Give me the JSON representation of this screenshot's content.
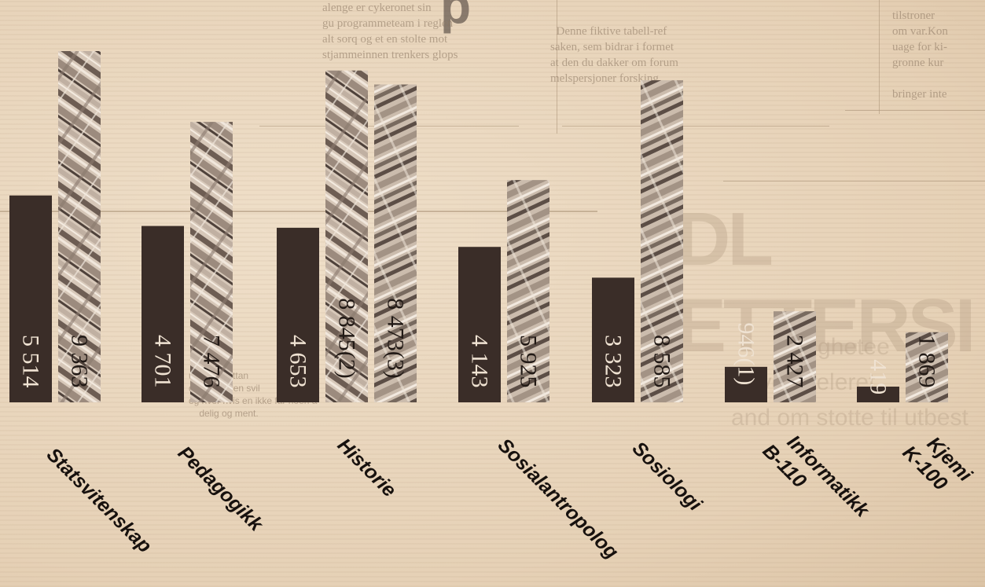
{
  "chart_data": {
    "type": "bar",
    "title": "",
    "xlabel": "",
    "ylabel": "",
    "ylim": [
      0,
      9500
    ],
    "grid": false,
    "legend": "none",
    "categories": [
      {
        "id": "statsvitenskap",
        "lines": [
          "Statsvitenskap"
        ]
      },
      {
        "id": "pedagogikk",
        "lines": [
          "Pedagogikk"
        ]
      },
      {
        "id": "historie",
        "lines": [
          "Historie"
        ]
      },
      {
        "id": "sosialantropologi",
        "lines": [
          "Sosialantropolog"
        ]
      },
      {
        "id": "sosiologi",
        "lines": [
          "Sosiologi"
        ]
      },
      {
        "id": "informatikk",
        "lines": [
          "Informatikk",
          "B-110"
        ]
      },
      {
        "id": "kjemi",
        "lines": [
          "Kjemi",
          "K-100"
        ]
      }
    ],
    "bars": [
      {
        "cat": 0,
        "kind": "dark",
        "value": 5514,
        "label": "5 514"
      },
      {
        "cat": 0,
        "kind": "photo",
        "value": 9363,
        "label": "9 363"
      },
      {
        "cat": 1,
        "kind": "dark",
        "value": 4701,
        "label": "4 701"
      },
      {
        "cat": 1,
        "kind": "photo",
        "value": 7476,
        "label": "7 476"
      },
      {
        "cat": 2,
        "kind": "dark",
        "value": 4653,
        "label": "4 653"
      },
      {
        "cat": 2,
        "kind": "photo",
        "value": 8845,
        "label": "8 845(2)"
      },
      {
        "cat": 2,
        "kind": "photo",
        "value": 8473,
        "label": "8 473(3)"
      },
      {
        "cat": 3,
        "kind": "dark",
        "value": 4143,
        "label": "4 143"
      },
      {
        "cat": 3,
        "kind": "photo",
        "value": 5925,
        "label": "5 925"
      },
      {
        "cat": 4,
        "kind": "dark",
        "value": 3323,
        "label": "3 323"
      },
      {
        "cat": 4,
        "kind": "photo",
        "value": 8585,
        "label": "8 585"
      },
      {
        "cat": 5,
        "kind": "dark",
        "value": 946,
        "label": "946(1)"
      },
      {
        "cat": 5,
        "kind": "photo",
        "value": 2427,
        "label": "2 427"
      },
      {
        "cat": 6,
        "kind": "dark",
        "value": 419,
        "label": "419"
      },
      {
        "cat": 6,
        "kind": "photo",
        "value": 1869,
        "label": "1 869"
      }
    ],
    "colors": {
      "dark": "#3a2d28",
      "photo_light": "#d9cbbd",
      "photo_dark": "#5f5048",
      "label_on_dark": "#efe2d2",
      "label_on_photo": "#221a16",
      "category": "#17110e"
    }
  }
}
